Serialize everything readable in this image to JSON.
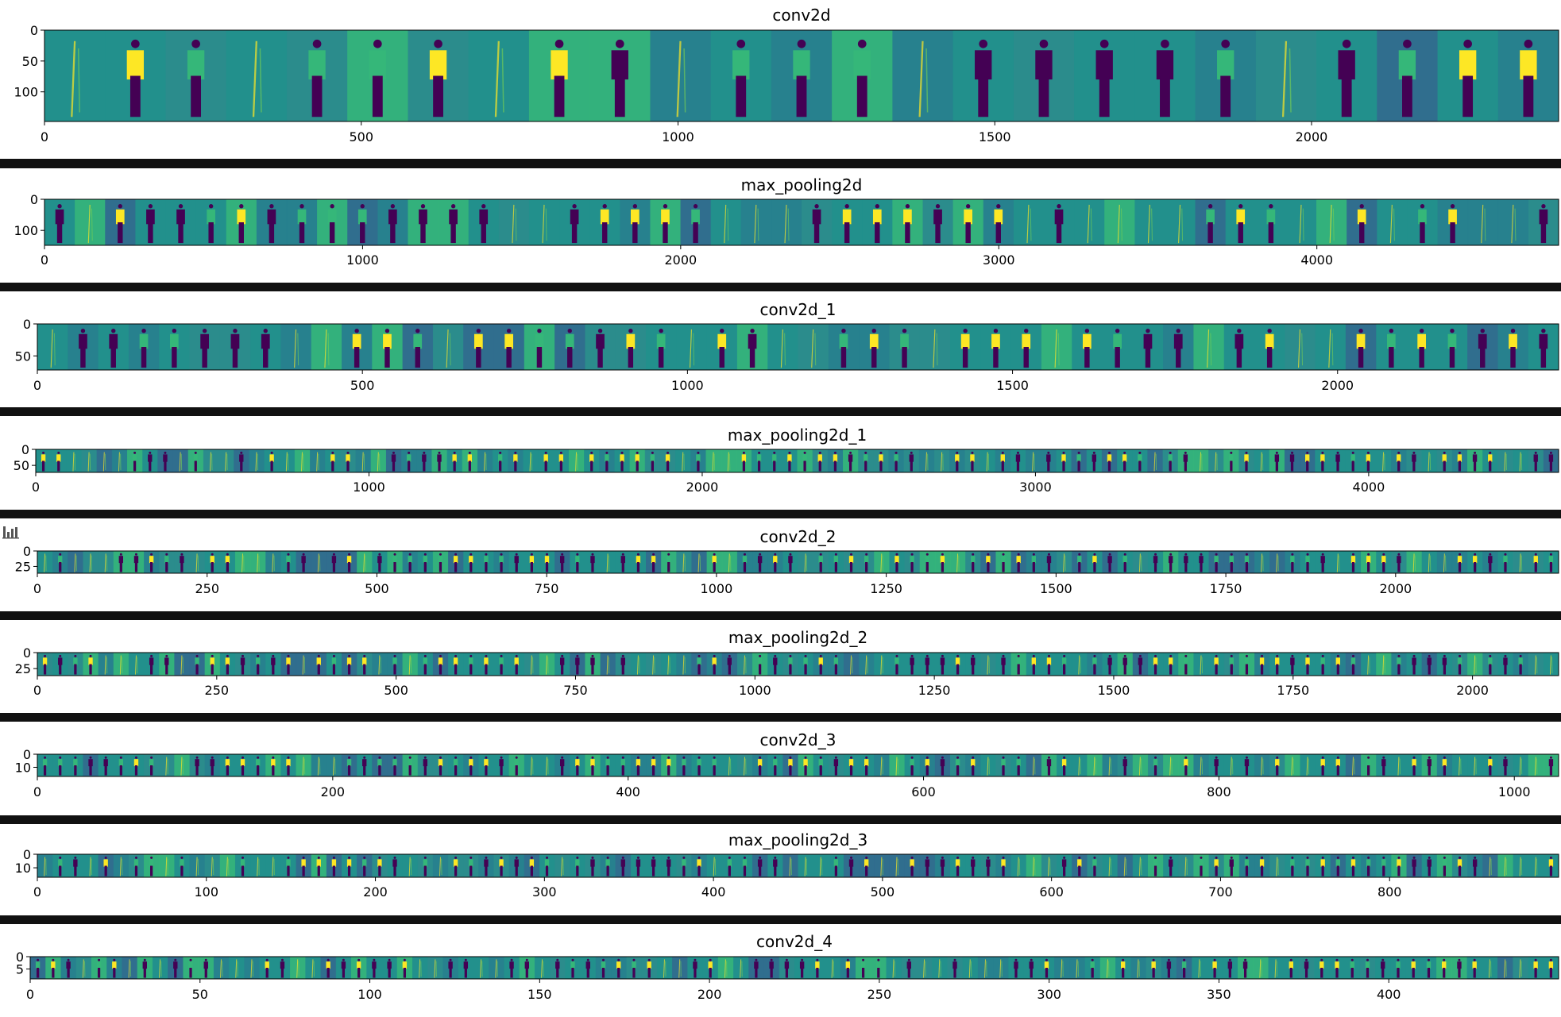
{
  "palette": {
    "bg": "#2a8a8a",
    "dark": "#440154",
    "mid": "#31688e",
    "teal": "#21918c",
    "green": "#35b779",
    "bright": "#fde725",
    "separator": "#111111"
  },
  "toolbar": {
    "icon": "bar-chart-icon"
  },
  "chart_data": [
    {
      "type": "heatmap",
      "title": "conv2d",
      "xlim": [
        0,
        2390
      ],
      "ylim": [
        148,
        0
      ],
      "xticks": [
        0,
        500,
        1000,
        1500,
        2000
      ],
      "yticks": [
        0,
        50,
        100
      ],
      "tiles": 25
    },
    {
      "type": "heatmap",
      "title": "max_pooling2d",
      "xlim": [
        0,
        4760
      ],
      "ylim": [
        148,
        0
      ],
      "xticks": [
        0,
        1000,
        2000,
        3000,
        4000
      ],
      "yticks": [
        0,
        100
      ],
      "tiles": 50
    },
    {
      "type": "heatmap",
      "title": "conv2d_1",
      "xlim": [
        0,
        2340
      ],
      "ylim": [
        72,
        0
      ],
      "xticks": [
        0,
        500,
        1000,
        1500,
        2000
      ],
      "yticks": [
        0,
        50
      ],
      "tiles": 50
    },
    {
      "type": "heatmap",
      "title": "max_pooling2d_1",
      "xlim": [
        0,
        4570
      ],
      "ylim": [
        72,
        0
      ],
      "xticks": [
        0,
        1000,
        2000,
        3000,
        4000
      ],
      "yticks": [
        0,
        50
      ],
      "tiles": 100
    },
    {
      "type": "heatmap",
      "title": "conv2d_2",
      "xlim": [
        0,
        2240
      ],
      "ylim": [
        36,
        0
      ],
      "xticks": [
        0,
        250,
        500,
        750,
        1000,
        1250,
        1500,
        1750,
        2000
      ],
      "yticks": [
        0,
        25
      ],
      "tiles": 100
    },
    {
      "type": "heatmap",
      "title": "max_pooling2d_2",
      "xlim": [
        0,
        2120
      ],
      "ylim": [
        36,
        0
      ],
      "xticks": [
        0,
        250,
        500,
        750,
        1000,
        1250,
        1500,
        1750,
        2000
      ],
      "yticks": [
        0,
        25
      ],
      "tiles": 100
    },
    {
      "type": "heatmap",
      "title": "conv2d_3",
      "xlim": [
        0,
        1030
      ],
      "ylim": [
        17,
        0
      ],
      "xticks": [
        0,
        200,
        400,
        600,
        800,
        1000
      ],
      "yticks": [
        0,
        10
      ],
      "tiles": 100
    },
    {
      "type": "heatmap",
      "title": "max_pooling2d_3",
      "xlim": [
        0,
        900
      ],
      "ylim": [
        17,
        0
      ],
      "xticks": [
        0,
        100,
        200,
        300,
        400,
        500,
        600,
        700,
        800
      ],
      "yticks": [
        0,
        10
      ],
      "tiles": 100
    },
    {
      "type": "heatmap",
      "title": "conv2d_4",
      "xlim": [
        0,
        450
      ],
      "ylim": [
        9,
        0
      ],
      "xticks": [
        0,
        50,
        100,
        150,
        200,
        250,
        300,
        350,
        400
      ],
      "yticks": [
        0,
        5
      ],
      "tiles": 100
    }
  ]
}
